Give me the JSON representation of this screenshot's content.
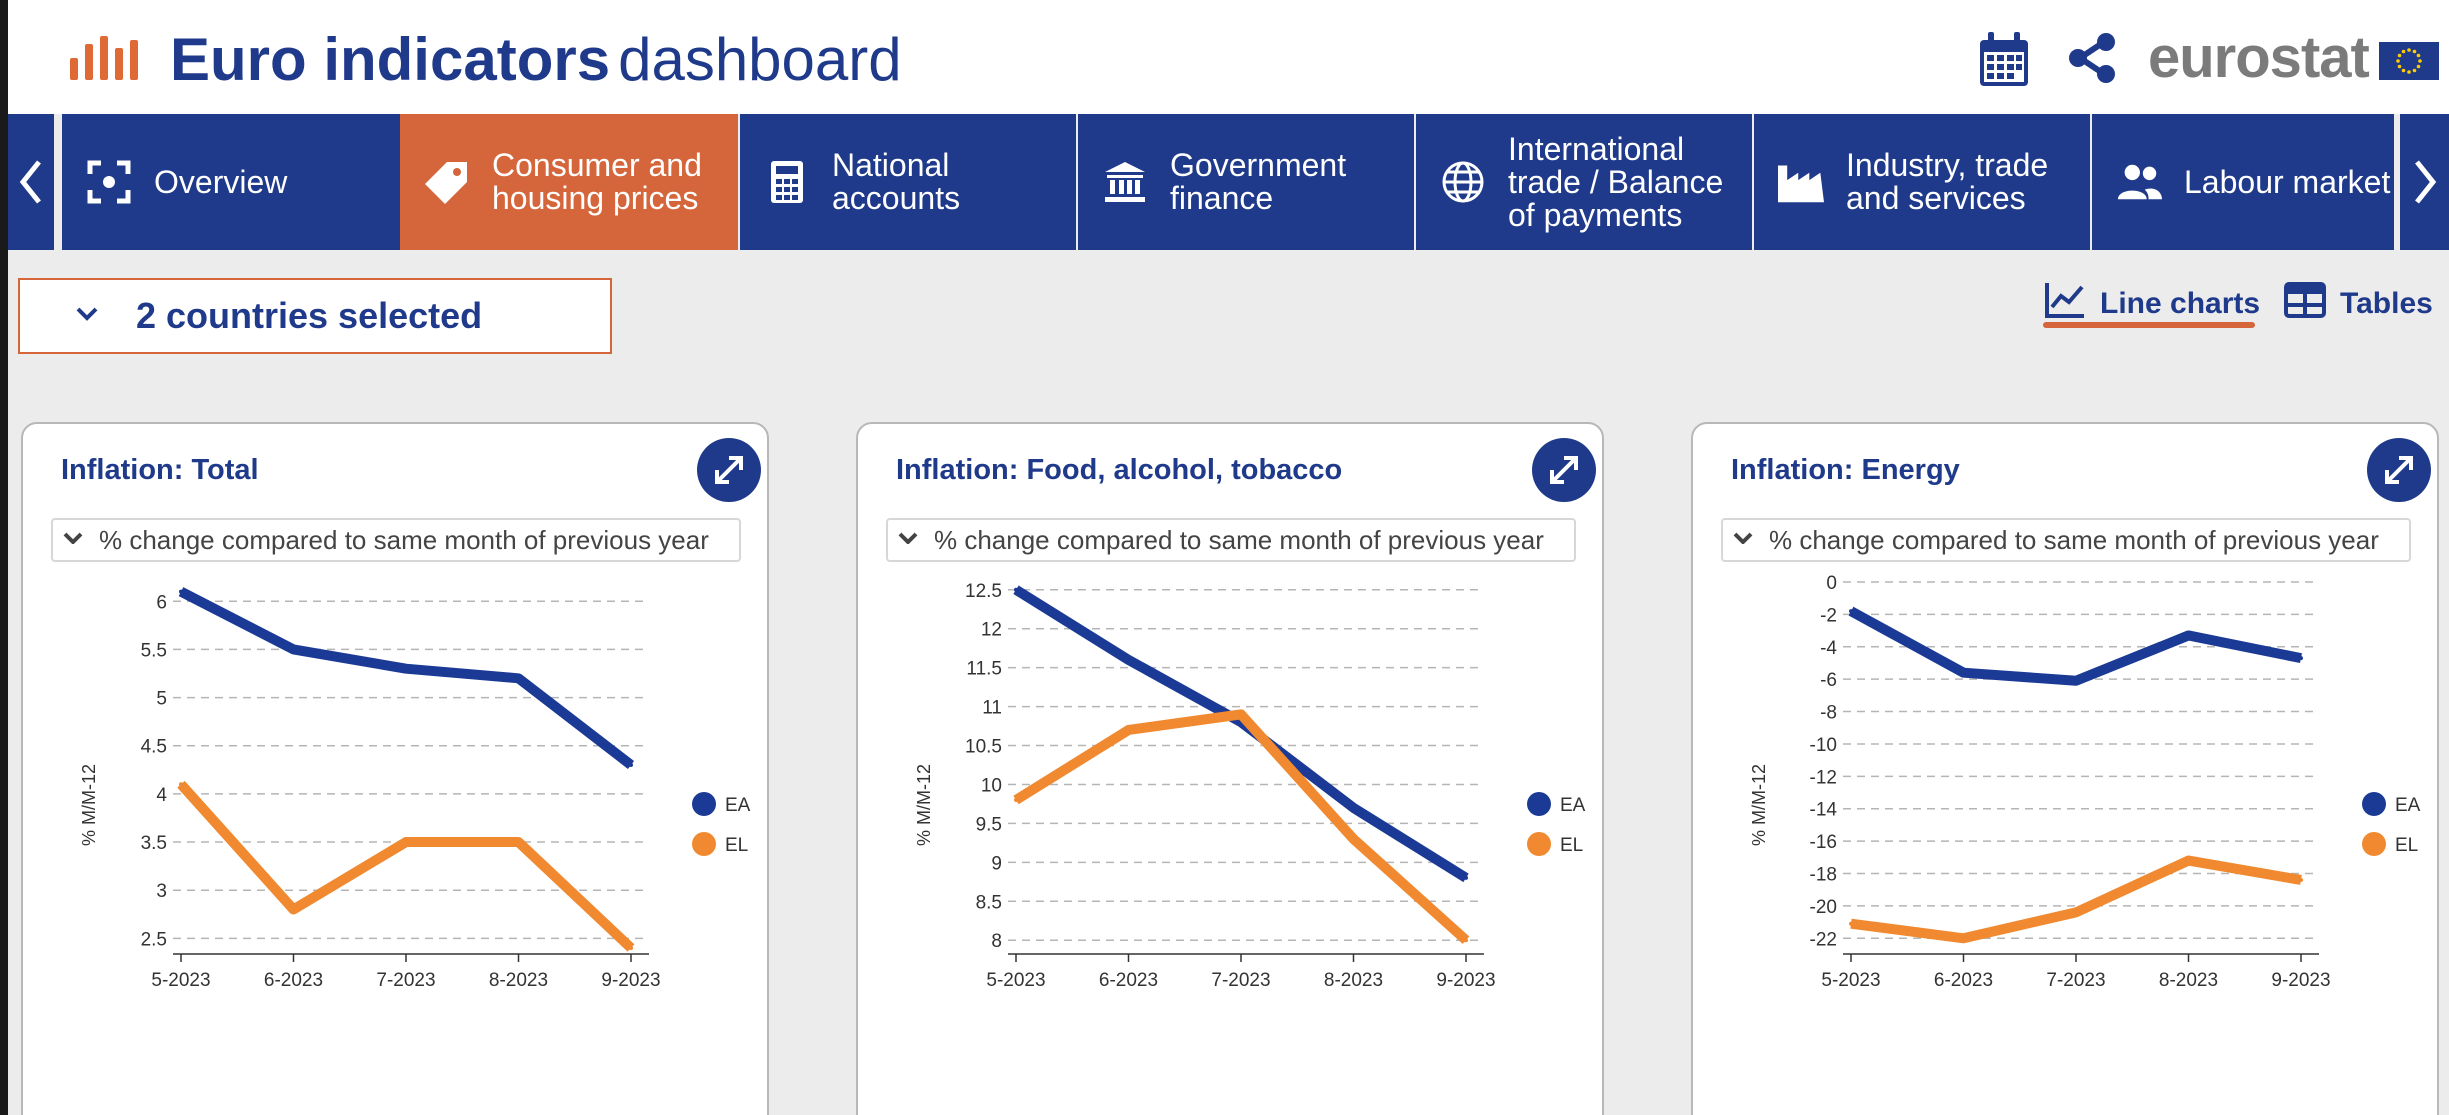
{
  "header": {
    "title_bold": "Euro indicators",
    "title_light": "dashboard",
    "brand": "eurostat",
    "icons": [
      "calendar-icon",
      "share-icon"
    ]
  },
  "nav": {
    "items": [
      {
        "label": "Overview",
        "icon": "overview-icon"
      },
      {
        "label": "Consumer and\nhousing prices",
        "icon": "price-tag-icon",
        "active": true
      },
      {
        "label": "National\naccounts",
        "icon": "calculator-icon"
      },
      {
        "label": "Government\nfinance",
        "icon": "bank-icon"
      },
      {
        "label": "International\ntrade / Balance\nof payments",
        "icon": "globe-icon"
      },
      {
        "label": "Industry, trade\nand services",
        "icon": "factory-icon"
      },
      {
        "label": "Labour market",
        "icon": "people-icon"
      }
    ]
  },
  "country_selector": {
    "label": "2 countries selected"
  },
  "view_tabs": {
    "line_charts": "Line charts",
    "tables": "Tables",
    "active": "line_charts"
  },
  "colors": {
    "primary": "#1f3a8a",
    "accent": "#d5653a",
    "series_ea": "#1b3a96",
    "series_el": "#f0892f"
  },
  "cards": [
    {
      "title": "Inflation: Total",
      "measure": "% change compared to same month of previous year"
    },
    {
      "title": "Inflation: Food, alcohol, tobacco",
      "measure": "% change compared to same month of previous year"
    },
    {
      "title": "Inflation: Energy",
      "measure": "% change compared to same month of previous year"
    }
  ],
  "chart_data": [
    {
      "type": "line",
      "title": "Inflation: Total",
      "ylabel": "% M/M-12",
      "x": [
        "5-2023",
        "6-2023",
        "7-2023",
        "8-2023",
        "9-2023"
      ],
      "yticks": [
        6,
        5.5,
        5,
        4.5,
        4,
        3.5,
        3,
        2.5
      ],
      "ylim": [
        2.4,
        6.2
      ],
      "series": [
        {
          "name": "EA",
          "values": [
            6.1,
            5.5,
            5.3,
            5.2,
            4.3
          ]
        },
        {
          "name": "EL",
          "values": [
            4.1,
            2.8,
            3.5,
            3.5,
            2.4
          ]
        }
      ],
      "legend": "right",
      "grid": true
    },
    {
      "type": "line",
      "title": "Inflation: Food, alcohol, tobacco",
      "ylabel": "% M/M-12",
      "x": [
        "5-2023",
        "6-2023",
        "7-2023",
        "8-2023",
        "9-2023"
      ],
      "yticks": [
        12.5,
        12,
        11.5,
        11,
        10.5,
        10,
        9.5,
        9,
        8.5,
        8
      ],
      "ylim": [
        7.9,
        12.6
      ],
      "series": [
        {
          "name": "EA",
          "values": [
            12.5,
            11.6,
            10.8,
            9.7,
            8.8
          ]
        },
        {
          "name": "EL",
          "values": [
            9.8,
            10.7,
            10.9,
            9.3,
            8.0
          ]
        }
      ],
      "legend": "right",
      "grid": true
    },
    {
      "type": "line",
      "title": "Inflation: Energy",
      "ylabel": "% M/M-12",
      "x": [
        "5-2023",
        "6-2023",
        "7-2023",
        "8-2023",
        "9-2023"
      ],
      "yticks": [
        0,
        -2,
        -4,
        -6,
        -8,
        -10,
        -12,
        -14,
        -16,
        -18,
        -20,
        -22
      ],
      "ylim": [
        -22.6,
        0
      ],
      "series": [
        {
          "name": "EA",
          "values": [
            -1.8,
            -5.6,
            -6.1,
            -3.3,
            -4.7
          ]
        },
        {
          "name": "EL",
          "values": [
            -21.1,
            -22.0,
            -20.4,
            -17.2,
            -18.4
          ]
        }
      ],
      "legend": "right",
      "grid": true
    }
  ]
}
